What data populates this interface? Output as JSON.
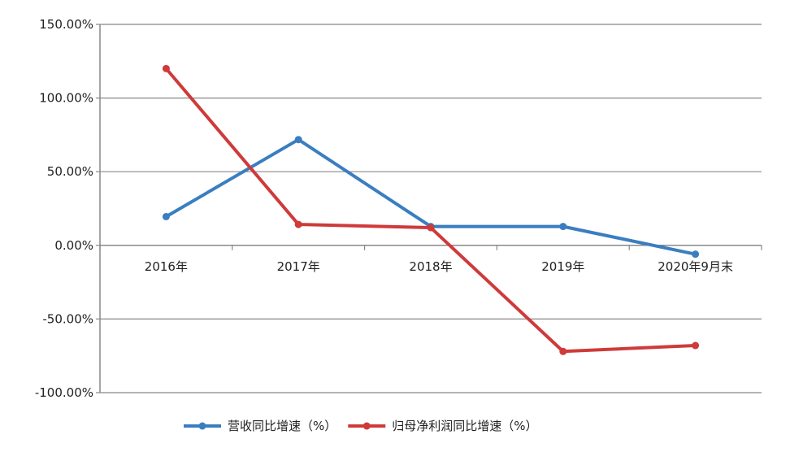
{
  "chart_data": {
    "type": "line",
    "categories": [
      "2016年",
      "2017年",
      "2018年",
      "2019年",
      "2020年9月末"
    ],
    "series": [
      {
        "name": "营收同比增速（%）",
        "color": "#3a7ec1",
        "values": [
          19.5,
          71.8,
          12.8,
          12.8,
          -6.0
        ]
      },
      {
        "name": "归母净利润同比增速（%）",
        "color": "#cf3a3a",
        "values": [
          120.0,
          14.2,
          12.0,
          -72.0,
          -68.0
        ]
      }
    ],
    "ylim": [
      -100,
      150
    ],
    "yticks": [
      150,
      100,
      50,
      0,
      -50,
      -100
    ],
    "ytick_labels": [
      "150.00%",
      "100.00%",
      "50.00%",
      "0.00%",
      "-50.00%",
      "-100.00%"
    ],
    "grid": true,
    "gridline_color": "#888888",
    "axis_color": "#888888",
    "legend_position": "bottom-center"
  }
}
